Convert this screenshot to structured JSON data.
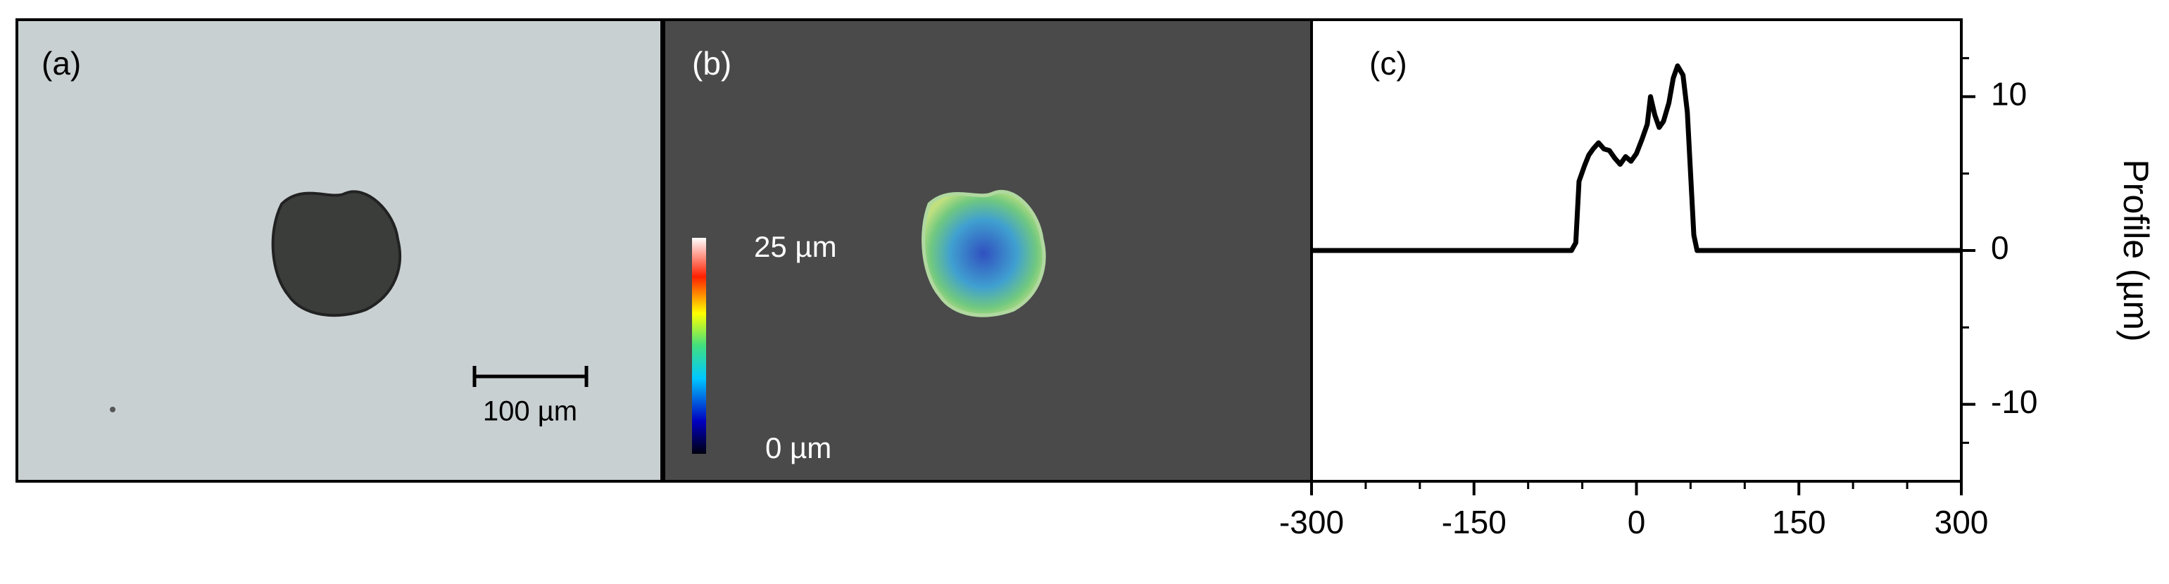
{
  "panels": [
    {
      "label": "(a)",
      "scale_bar": "100 µm"
    },
    {
      "label": "(b)",
      "colorbar_max": "25 µm",
      "colorbar_min": "0 µm"
    }
  ],
  "chart_data": {
    "type": "line",
    "panel_label": "(c)",
    "y_label": "Profile (µm)",
    "x": [
      -300,
      -60,
      -56,
      -53,
      -48,
      -44,
      -40,
      -35,
      -30,
      -25,
      -20,
      -15,
      -10,
      -5,
      0,
      5,
      10,
      13,
      17,
      21,
      25,
      30,
      34,
      38,
      43,
      47,
      50,
      53,
      56,
      60,
      300
    ],
    "series": [
      {
        "name": "Profile",
        "color": "#000000",
        "values": [
          0,
          0,
          0.5,
          4.5,
          5.5,
          6.2,
          6.6,
          7,
          6.6,
          6.5,
          6,
          5.6,
          6.1,
          5.8,
          6.3,
          7.2,
          8.2,
          10,
          8.8,
          8,
          8.4,
          9.6,
          11.2,
          12,
          11.4,
          9,
          5,
          1,
          0,
          0,
          0
        ]
      }
    ],
    "xlim": [
      -300,
      300
    ],
    "xticks": [
      -300,
      -150,
      0,
      150,
      300
    ],
    "ylim": [
      -15,
      15
    ],
    "yticks": [
      -10,
      0,
      10
    ]
  }
}
